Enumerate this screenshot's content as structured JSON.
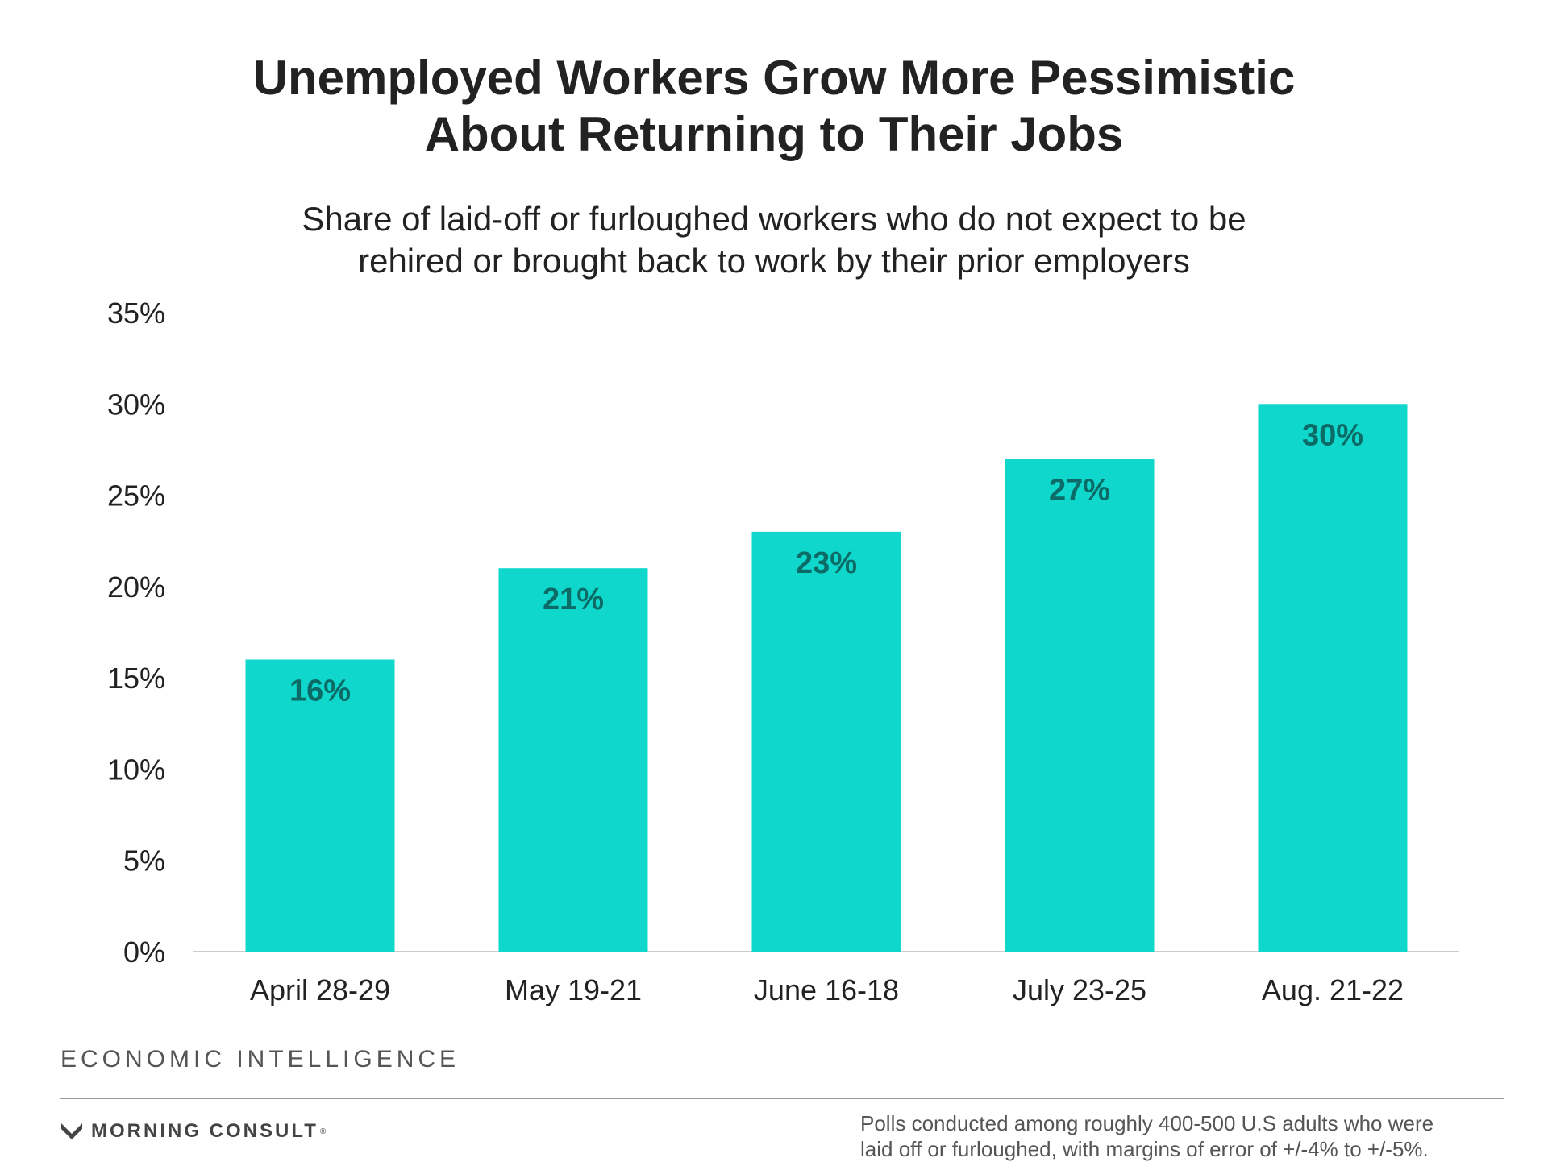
{
  "header": {
    "title_line_1": "Unemployed Workers Grow More Pessimistic",
    "title_line_2": "About Returning to Their Jobs",
    "subtitle_line_1": "Share of laid-off or furloughed workers who do not expect to be",
    "subtitle_line_2": "rehired or brought back to work by their prior employers"
  },
  "footer": {
    "section_label": "ECONOMIC INTELLIGENCE",
    "logo_text": "MORNING CONSULT",
    "logo_mark": "morning-consult-logo-icon",
    "note_line_1": "Polls conducted among roughly 400-500 U.S adults who were",
    "note_line_2": "laid off or furloughed, with margins of error of +/-4% to +/-5%."
  },
  "colors": {
    "bar": "#10d7cb",
    "bar_label": "#0d6b67",
    "axis_text": "#222222",
    "baseline": "#cccccc"
  },
  "chart_data": {
    "type": "bar",
    "title": "Unemployed Workers Grow More Pessimistic About Returning to Their Jobs",
    "subtitle": "Share of laid-off or furloughed workers who do not expect to be rehired or brought back to work by their prior employers",
    "categories": [
      "April 28-29",
      "May 19-21",
      "June 16-18",
      "July 23-25",
      "Aug. 21-22"
    ],
    "values": [
      16,
      21,
      23,
      27,
      30
    ],
    "value_labels": [
      "16%",
      "21%",
      "23%",
      "27%",
      "30%"
    ],
    "ylim": [
      0,
      35
    ],
    "yticks": [
      0,
      5,
      10,
      15,
      20,
      25,
      30,
      35
    ],
    "ytick_labels": [
      "0%",
      "5%",
      "10%",
      "15%",
      "20%",
      "25%",
      "30%",
      "35%"
    ],
    "xlabel": "",
    "ylabel": "",
    "grid": false,
    "legend": "none"
  }
}
